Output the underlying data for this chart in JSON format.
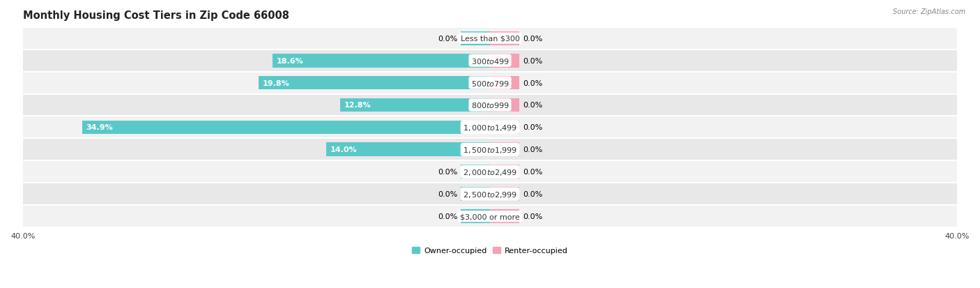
{
  "title": "Monthly Housing Cost Tiers in Zip Code 66008",
  "source": "Source: ZipAtlas.com",
  "categories": [
    "Less than $300",
    "$300 to $499",
    "$500 to $799",
    "$800 to $999",
    "$1,000 to $1,499",
    "$1,500 to $1,999",
    "$2,000 to $2,499",
    "$2,500 to $2,999",
    "$3,000 or more"
  ],
  "owner_values": [
    0.0,
    18.6,
    19.8,
    12.8,
    34.9,
    14.0,
    0.0,
    0.0,
    0.0
  ],
  "renter_values": [
    0.0,
    0.0,
    0.0,
    0.0,
    0.0,
    0.0,
    0.0,
    0.0,
    0.0
  ],
  "owner_color": "#5BC8C8",
  "renter_color": "#F4A0B5",
  "row_colors": [
    "#F2F2F2",
    "#E8E8E8"
  ],
  "axis_limit": 40.0,
  "stub_size": 2.5,
  "label_fontsize": 8.0,
  "title_fontsize": 10.5,
  "bar_height": 0.62,
  "legend_owner": "Owner-occupied",
  "legend_renter": "Renter-occupied",
  "owner_label_color_inside": "white",
  "owner_label_color_outside": "black"
}
